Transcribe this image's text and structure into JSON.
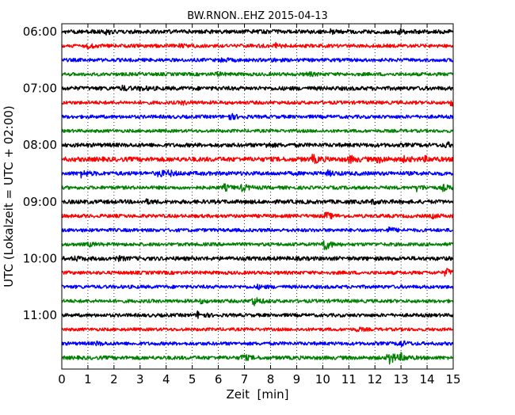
{
  "chart_data": {
    "type": "line",
    "title": "BW.RNON..EHZ 2015-04-13",
    "xlabel": "Zeit  [min]",
    "ylabel": "UTC (Lokalzeit = UTC + 02:00)",
    "xlim": [
      0,
      15
    ],
    "x_ticks": [
      "0",
      "1",
      "2",
      "3",
      "4",
      "5",
      "6",
      "7",
      "8",
      "9",
      "10",
      "11",
      "12",
      "13",
      "14",
      "15"
    ],
    "y_tick_labels": [
      "06:00",
      "07:00",
      "08:00",
      "09:00",
      "10:00",
      "11:00"
    ],
    "grid": "vertical dotted lines at each minute",
    "colors": [
      "#000000",
      "#ff0000",
      "#0000ff",
      "#008000"
    ],
    "rows": [
      {
        "color": "#000000",
        "amplitude": 0.7,
        "events": [
          {
            "t": 1.7,
            "a": 0.6
          },
          {
            "t": 10.3,
            "a": 0.5
          },
          {
            "t": 12.9,
            "a": 0.6
          }
        ]
      },
      {
        "color": "#ff0000",
        "amplitude": 0.6,
        "events": [
          {
            "t": 1.0,
            "a": 0.6
          },
          {
            "t": 4.5,
            "a": 0.5
          },
          {
            "t": 8.2,
            "a": 0.7
          }
        ]
      },
      {
        "color": "#0000ff",
        "amplitude": 0.6,
        "events": [
          {
            "t": 6.1,
            "a": 0.6
          },
          {
            "t": 8.0,
            "a": 0.4
          }
        ]
      },
      {
        "color": "#008000",
        "amplitude": 0.6,
        "events": [
          {
            "t": 5.9,
            "a": 0.5
          },
          {
            "t": 9.4,
            "a": 0.6
          }
        ]
      },
      {
        "color": "#000000",
        "amplitude": 0.7,
        "events": [
          {
            "t": 2.3,
            "a": 0.6
          },
          {
            "t": 3.0,
            "a": 0.5
          }
        ]
      },
      {
        "color": "#ff0000",
        "amplitude": 0.6,
        "events": [
          {
            "t": 4.6,
            "a": 0.5
          },
          {
            "t": 14.9,
            "a": 0.9
          }
        ]
      },
      {
        "color": "#0000ff",
        "amplitude": 0.6,
        "events": [
          {
            "t": 6.4,
            "a": 1.0
          }
        ]
      },
      {
        "color": "#008000",
        "amplitude": 0.55,
        "events": []
      },
      {
        "color": "#000000",
        "amplitude": 0.7,
        "events": [
          {
            "t": 7.8,
            "a": 0.6
          },
          {
            "t": 14.7,
            "a": 0.7
          }
        ]
      },
      {
        "color": "#ff0000",
        "amplitude": 0.8,
        "events": [
          {
            "t": 9.6,
            "a": 1.3
          },
          {
            "t": 11.0,
            "a": 1.0
          },
          {
            "t": 12.1,
            "a": 0.9
          },
          {
            "t": 13.1,
            "a": 0.6
          },
          {
            "t": 13.9,
            "a": 0.6
          }
        ]
      },
      {
        "color": "#0000ff",
        "amplitude": 0.7,
        "events": [
          {
            "t": 0.7,
            "a": 1.1
          },
          {
            "t": 3.7,
            "a": 1.0
          },
          {
            "t": 4.1,
            "a": 0.6
          },
          {
            "t": 10.2,
            "a": 0.6
          }
        ]
      },
      {
        "color": "#008000",
        "amplitude": 0.6,
        "events": [
          {
            "t": 6.2,
            "a": 1.0
          },
          {
            "t": 6.9,
            "a": 1.1
          },
          {
            "t": 13.6,
            "a": 0.9
          },
          {
            "t": 14.6,
            "a": 0.9
          }
        ]
      },
      {
        "color": "#000000",
        "amplitude": 0.7,
        "events": [
          {
            "t": 3.2,
            "a": 0.5
          },
          {
            "t": 11.9,
            "a": 0.5
          }
        ]
      },
      {
        "color": "#ff0000",
        "amplitude": 0.6,
        "events": [
          {
            "t": 10.1,
            "a": 1.2
          },
          {
            "t": 14.2,
            "a": 0.5
          }
        ]
      },
      {
        "color": "#0000ff",
        "amplitude": 0.6,
        "events": [
          {
            "t": 12.5,
            "a": 0.8
          }
        ]
      },
      {
        "color": "#008000",
        "amplitude": 0.6,
        "events": [
          {
            "t": 10.0,
            "a": 2.5
          },
          {
            "t": 1.0,
            "a": 0.5
          }
        ]
      },
      {
        "color": "#000000",
        "amplitude": 0.7,
        "events": [
          {
            "t": 2.1,
            "a": 0.6
          },
          {
            "t": 0.5,
            "a": 0.5
          }
        ]
      },
      {
        "color": "#ff0000",
        "amplitude": 0.6,
        "events": [
          {
            "t": 14.7,
            "a": 1.3
          }
        ]
      },
      {
        "color": "#0000ff",
        "amplitude": 0.6,
        "events": [
          {
            "t": 7.5,
            "a": 0.5
          }
        ]
      },
      {
        "color": "#008000",
        "amplitude": 0.6,
        "events": [
          {
            "t": 7.3,
            "a": 1.6
          },
          {
            "t": 5.3,
            "a": 0.5
          }
        ]
      },
      {
        "color": "#000000",
        "amplitude": 0.6,
        "events": [
          {
            "t": 5.2,
            "a": 1.1
          }
        ]
      },
      {
        "color": "#ff0000",
        "amplitude": 0.55,
        "events": [
          {
            "t": 11.3,
            "a": 0.5
          }
        ]
      },
      {
        "color": "#0000ff",
        "amplitude": 0.6,
        "events": [
          {
            "t": 12.9,
            "a": 1.1
          },
          {
            "t": 1.3,
            "a": 0.5
          }
        ]
      },
      {
        "color": "#008000",
        "amplitude": 0.65,
        "events": [
          {
            "t": 6.9,
            "a": 1.0
          },
          {
            "t": 12.5,
            "a": 2.6
          },
          {
            "t": 13.0,
            "a": 1.0
          }
        ]
      }
    ]
  }
}
